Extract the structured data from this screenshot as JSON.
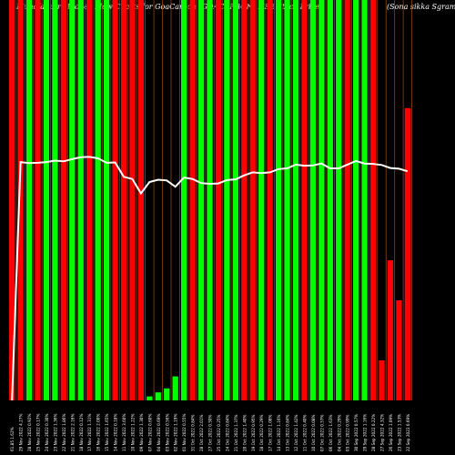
{
  "chart_data": {
    "type": "bar",
    "title_left": "MunafaSutra Money Flow Charts for GoaCarbon (GOACARBON) NSE Stock Price",
    "title_right": "(Sona sikka Sgram)",
    "price_line_color": "#ffffff",
    "colors": {
      "up": "#00ff00",
      "down": "#ff0000",
      "line": "#ffffff",
      "divider": "#8b4513"
    },
    "ylim": [
      0,
      100
    ],
    "bars": [
      {
        "label": "61.85 1.62%",
        "color": "down",
        "value": 100,
        "price": 0
      },
      {
        "label": "29 Nov 2022 4.27%",
        "color": "down",
        "value": 100,
        "price": 62.2
      },
      {
        "label": "28 Nov 2022 0.92%",
        "color": "up",
        "value": 100,
        "price": 61.9
      },
      {
        "label": "25 Nov 2022 0.17%",
        "color": "down",
        "value": 100,
        "price": 62.0
      },
      {
        "label": "24 Nov 2022 0.30%",
        "color": "up",
        "value": 100,
        "price": 62.2
      },
      {
        "label": "23 Nov 2022 1.36%",
        "color": "up",
        "value": 100,
        "price": 62.6
      },
      {
        "label": "22 Nov 2022 1.86%",
        "color": "down",
        "value": 100,
        "price": 62.4
      },
      {
        "label": "21 Nov 2022 2.16%",
        "color": "up",
        "value": 100,
        "price": 63.0
      },
      {
        "label": "18 Nov 2022 0.12%",
        "color": "up",
        "value": 100,
        "price": 63.5
      },
      {
        "label": "17 Nov 2022 1.31%",
        "color": "down",
        "value": 100,
        "price": 63.6
      },
      {
        "label": "16 Nov 2022 2.00%",
        "color": "up",
        "value": 100,
        "price": 63.2
      },
      {
        "label": "15 Nov 2022 1.65%",
        "color": "up",
        "value": 100,
        "price": 62.0
      },
      {
        "label": "14 Nov 2022 0.18%",
        "color": "down",
        "value": 100,
        "price": 62.1
      },
      {
        "label": "11 Nov 2022 3.60%",
        "color": "down",
        "value": 100,
        "price": 58.2
      },
      {
        "label": "10 Nov 2022 1.22%",
        "color": "down",
        "value": 100,
        "price": 57.6
      },
      {
        "label": "09 Nov 2022 1.30%",
        "color": "down",
        "value": 100,
        "price": 53.7
      },
      {
        "label": "07 Nov 2022 0.60%",
        "color": "up",
        "value": 1,
        "price": 56.8
      },
      {
        "label": "04 Nov 2022 0.69%",
        "color": "up",
        "value": 2,
        "price": 57.4
      },
      {
        "label": "03 Nov 2022 0.56%",
        "color": "up",
        "value": 3,
        "price": 57.2
      },
      {
        "label": "02 Nov 2022 1.19%",
        "color": "up",
        "value": 6,
        "price": 55.5
      },
      {
        "label": "01 Nov 2022 0.55%",
        "color": "up",
        "value": 100,
        "price": 58.0
      },
      {
        "label": "31 Oct 2022 0.84%",
        "color": "down",
        "value": 100,
        "price": 57.6
      },
      {
        "label": "28 Oct 2022 2.01%",
        "color": "up",
        "value": 100,
        "price": 56.5
      },
      {
        "label": "27 Oct 2022 0.50%",
        "color": "up",
        "value": 100,
        "price": 56.3
      },
      {
        "label": "25 Oct 2022 0.25%",
        "color": "down",
        "value": 100,
        "price": 56.4
      },
      {
        "label": "24 Oct 2022 0.84%",
        "color": "up",
        "value": 100,
        "price": 57.3
      },
      {
        "label": "21 Oct 2022 1.37%",
        "color": "up",
        "value": 100,
        "price": 57.5
      },
      {
        "label": "20 Oct 2022 1.40%",
        "color": "down",
        "value": 100,
        "price": 58.6
      },
      {
        "label": "19 Oct 2022 0.95%",
        "color": "down",
        "value": 100,
        "price": 59.4
      },
      {
        "label": "18 Oct 2022 0.29%",
        "color": "up",
        "value": 100,
        "price": 59.2
      },
      {
        "label": "17 Oct 2022 1.08%",
        "color": "down",
        "value": 100,
        "price": 59.4
      },
      {
        "label": "14 Oct 2022 1.16%",
        "color": "up",
        "value": 100,
        "price": 60.3
      },
      {
        "label": "13 Oct 2022 0.84%",
        "color": "up",
        "value": 100,
        "price": 60.5
      },
      {
        "label": "12 Oct 2022 1.42%",
        "color": "up",
        "value": 100,
        "price": 61.5
      },
      {
        "label": "11 Oct 2022 0.40%",
        "color": "down",
        "value": 100,
        "price": 61.2
      },
      {
        "label": "10 Oct 2022 0.08%",
        "color": "up",
        "value": 100,
        "price": 61.3
      },
      {
        "label": "07 Oct 2022 0.57%",
        "color": "up",
        "value": 100,
        "price": 61.8
      },
      {
        "label": "06 Oct 2022 1.63%",
        "color": "up",
        "value": 100,
        "price": 60.5
      },
      {
        "label": "04 Oct 2022 0.29%",
        "color": "up",
        "value": 100,
        "price": 60.5
      },
      {
        "label": "03 Oct 2022 0.99%",
        "color": "down",
        "value": 100,
        "price": 61.5
      },
      {
        "label": "30 Sep 2022 0.57%",
        "color": "up",
        "value": 100,
        "price": 62.5
      },
      {
        "label": "29 Sep 2022 1.16%",
        "color": "up",
        "value": 100,
        "price": 61.8
      },
      {
        "label": "28 Sep 2022 0.22%",
        "color": "down",
        "value": 100,
        "price": 61.7
      },
      {
        "label": "27 Sep 2022 4.32%",
        "color": "down",
        "value": 10,
        "price": 61.4
      },
      {
        "label": "26 Sep 2022 1.09%",
        "color": "down",
        "value": 35,
        "price": 60.6
      },
      {
        "label": "23 Sep 2022 1.53%",
        "color": "down",
        "value": 25,
        "price": 60.4
      },
      {
        "label": "22 Sep 2022 0.69%",
        "color": "down",
        "value": 73,
        "price": 59.7
      }
    ]
  }
}
